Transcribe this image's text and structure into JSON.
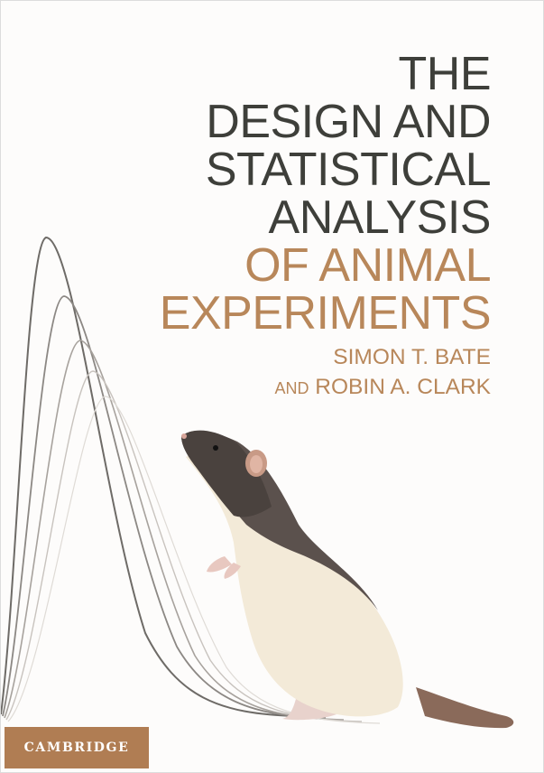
{
  "cover": {
    "title": {
      "lines_dark": [
        "THE",
        "DESIGN AND",
        "STATISTICAL",
        "ANALYSIS"
      ],
      "lines_accent": [
        "OF ANIMAL",
        "EXPERIMENTS"
      ]
    },
    "authors": {
      "line1": "SIMON T. BATE",
      "line2_and": "AND",
      "line2_name": "ROBIN A. CLARK"
    },
    "publisher": "CAMBRIDGE",
    "colors": {
      "title_dark": "#3e3f3a",
      "accent": "#b8875a",
      "publisher_bg": "#b07d53",
      "background": "#fdfcfb"
    }
  }
}
